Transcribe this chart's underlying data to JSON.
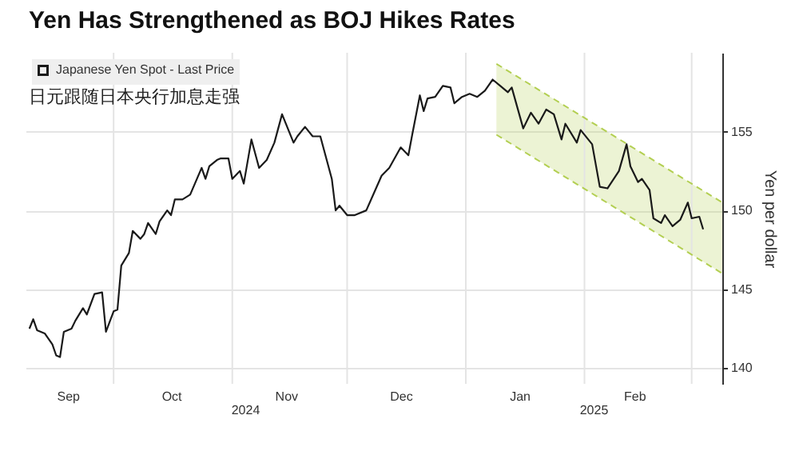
{
  "chart_data": {
    "type": "line",
    "title": "Yen Has Strengthened as BOJ Hikes Rates",
    "subtitle": "日元跟随日本央行加息走强",
    "ylabel": "Yen per dollar",
    "xlim": [
      "2024-09-08",
      "2025-03-09"
    ],
    "ylim": [
      139,
      160
    ],
    "xticks": [
      {
        "value": "2024-09-19",
        "label": "Sep"
      },
      {
        "value": "2024-10-01",
        "label": null
      },
      {
        "value": "2024-10-16",
        "label": "Oct"
      },
      {
        "value": "2024-11-01",
        "label": null
      },
      {
        "value": "2024-11-15",
        "label": "Nov"
      },
      {
        "value": "2024-12-01",
        "label": null
      },
      {
        "value": "2024-12-15",
        "label": "Dec"
      },
      {
        "value": "2025-01-01",
        "label": null
      },
      {
        "value": "2025-01-15",
        "label": "Jan"
      },
      {
        "value": "2025-02-01",
        "label": null
      },
      {
        "value": "2025-02-14",
        "label": "Feb"
      },
      {
        "value": "2025-03-01",
        "label": null
      }
    ],
    "yticks": [
      140,
      145,
      150,
      155
    ],
    "annotations": [
      "2024",
      "2025"
    ],
    "grid": true,
    "legend": "top left",
    "series": [
      {
        "name": "Japanese Yen Spot - Last Price",
        "color": "#1a1a1a",
        "x": [
          "2024-09-09",
          "2024-09-10",
          "2024-09-11",
          "2024-09-13",
          "2024-09-15",
          "2024-09-16",
          "2024-09-17",
          "2024-09-18",
          "2024-09-20",
          "2024-09-21",
          "2024-09-23",
          "2024-09-24",
          "2024-09-26",
          "2024-09-28",
          "2024-09-29",
          "2024-10-01",
          "2024-10-02",
          "2024-10-03",
          "2024-10-05",
          "2024-10-06",
          "2024-10-08",
          "2024-10-09",
          "2024-10-10",
          "2024-10-12",
          "2024-10-13",
          "2024-10-15",
          "2024-10-16",
          "2024-10-17",
          "2024-10-19",
          "2024-10-21",
          "2024-10-24",
          "2024-10-25",
          "2024-10-26",
          "2024-10-28",
          "2024-10-29",
          "2024-10-31",
          "2024-11-01",
          "2024-11-03",
          "2024-11-04",
          "2024-11-06",
          "2024-11-08",
          "2024-11-10",
          "2024-11-12",
          "2024-11-14",
          "2024-11-17",
          "2024-11-18",
          "2024-11-20",
          "2024-11-22",
          "2024-11-24",
          "2024-11-25",
          "2024-11-27",
          "2024-11-28",
          "2024-11-29",
          "2024-12-01",
          "2024-12-03",
          "2024-12-06",
          "2024-12-10",
          "2024-12-12",
          "2024-12-15",
          "2024-12-17",
          "2024-12-18",
          "2024-12-20",
          "2024-12-21",
          "2024-12-22",
          "2024-12-24",
          "2024-12-26",
          "2024-12-28",
          "2024-12-29",
          "2024-12-31",
          "2025-01-02",
          "2025-01-04",
          "2025-01-06",
          "2025-01-08",
          "2025-01-10",
          "2025-01-12",
          "2025-01-13",
          "2025-01-16",
          "2025-01-18",
          "2025-01-20",
          "2025-01-22",
          "2025-01-24",
          "2025-01-26",
          "2025-01-27",
          "2025-01-30",
          "2025-01-31",
          "2025-02-03",
          "2025-02-05",
          "2025-02-07",
          "2025-02-10",
          "2025-02-12",
          "2025-02-13",
          "2025-02-15",
          "2025-02-16",
          "2025-02-18",
          "2025-02-19",
          "2025-02-21",
          "2025-02-22",
          "2025-02-24",
          "2025-02-26",
          "2025-02-28",
          "2025-03-01",
          "2025-03-03",
          "2025-03-04"
        ],
        "values": [
          142.5,
          143.1,
          142.4,
          142.2,
          141.5,
          140.8,
          140.7,
          142.3,
          142.5,
          143.0,
          143.8,
          143.4,
          144.7,
          144.8,
          142.3,
          143.6,
          143.7,
          146.5,
          147.3,
          148.7,
          148.2,
          148.5,
          149.2,
          148.5,
          149.3,
          150.0,
          149.7,
          150.7,
          150.7,
          151.0,
          152.7,
          152.0,
          152.8,
          153.2,
          153.3,
          153.3,
          152.0,
          152.5,
          151.7,
          154.5,
          152.7,
          153.2,
          154.3,
          156.1,
          154.3,
          154.7,
          155.3,
          154.7,
          154.7,
          153.8,
          152.0,
          150.0,
          150.3,
          149.7,
          149.7,
          150.0,
          152.2,
          152.7,
          154.0,
          153.5,
          154.8,
          157.3,
          156.3,
          157.1,
          157.2,
          157.9,
          157.8,
          156.8,
          157.2,
          157.4,
          157.2,
          157.6,
          158.3,
          157.9,
          157.5,
          157.8,
          155.2,
          156.2,
          155.5,
          156.4,
          156.1,
          154.5,
          155.5,
          154.3,
          155.1,
          154.2,
          151.5,
          151.4,
          152.5,
          154.2,
          152.8,
          151.8,
          152.0,
          151.3,
          149.5,
          149.2,
          149.7,
          149.0,
          149.4,
          150.5,
          149.5,
          149.6,
          148.8
        ]
      },
      {
        "type": "line",
        "color": "#b3cf52",
        "line_style": "dashed",
        "x": [
          "2025-01-09",
          "2025-03-09"
        ],
        "values": [
          159.3,
          150.5
        ],
        "lower": [
          154.8,
          146.0
        ],
        "upper": [
          159.3,
          150.5
        ]
      },
      {
        "type": "line",
        "color": "#b3cf52",
        "line_style": "dashed",
        "x": [
          "2025-01-09",
          "2025-03-09"
        ],
        "values": [
          154.8,
          146.0
        ]
      }
    ]
  }
}
